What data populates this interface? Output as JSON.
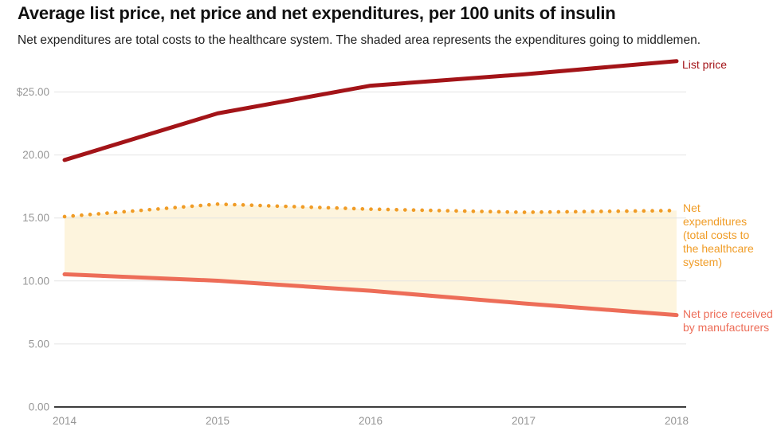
{
  "chart_data": {
    "type": "line",
    "title": "Average list price, net price and net expenditures, per 100 units of insulin",
    "subtitle": "Net expenditures are total costs to the healthcare system. The shaded area represents the expenditures going to middlemen.",
    "x": [
      2014,
      2015,
      2016,
      2017,
      2018
    ],
    "series": [
      {
        "key": "list-price",
        "name": "List price",
        "values": [
          19.6,
          23.3,
          25.5,
          26.4,
          27.45
        ],
        "color": "#a31418",
        "line_style": "solid"
      },
      {
        "key": "net-expenditures",
        "name": "Net expenditures (total costs to the healthcare system)",
        "values": [
          15.11,
          16.1,
          15.7,
          15.45,
          15.59
        ],
        "color": "#f09c26",
        "line_style": "dotted"
      },
      {
        "key": "net-price",
        "name": "Net price received by manufacturers",
        "values": [
          10.53,
          10.02,
          9.22,
          8.22,
          7.29
        ],
        "color": "#ed6d58",
        "line_style": "solid"
      }
    ],
    "shaded_area": {
      "between": [
        "net-expenditures",
        "net-price"
      ],
      "color": "#fdf4dd"
    },
    "yticks": [
      {
        "label": "$25.00",
        "value": 25
      },
      {
        "label": "20.00",
        "value": 20
      },
      {
        "label": "15.00",
        "value": 15
      },
      {
        "label": "10.00",
        "value": 10
      },
      {
        "label": "5.00",
        "value": 5
      },
      {
        "label": "0.00",
        "value": 0
      }
    ],
    "ylim": [
      0,
      28.5
    ],
    "xlabel": "",
    "ylabel": "",
    "grid": "horizontal",
    "legend_position": "right-annotations",
    "axis_colors": {
      "gridline": "#e4e4e4",
      "baseline": "#3d3d3d",
      "tick_label": "#969696"
    }
  }
}
